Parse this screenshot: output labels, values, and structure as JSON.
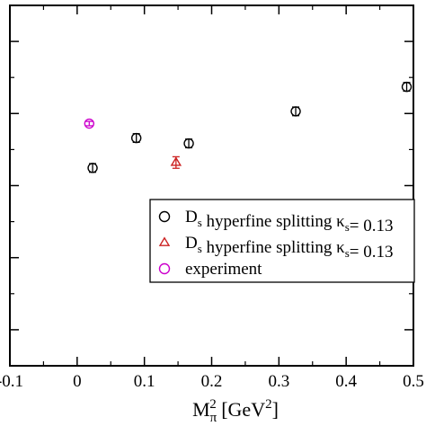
{
  "chart_data": {
    "type": "scatter",
    "xlim": [
      -0.1,
      0.5
    ],
    "x_ticks": [
      -0.1,
      0,
      0.1,
      0.2,
      0.3,
      0.4,
      0.5
    ],
    "x_tick_labels": [
      "-0.1",
      "0",
      "0.1",
      "0.2",
      "0.3",
      "0.4",
      "0.5"
    ],
    "ylim": [
      0,
      1
    ],
    "y_ticks": [
      0.1,
      0.3,
      0.5,
      0.7,
      0.9
    ],
    "y_tick_labels": [
      "",
      "",
      "",
      "",
      ""
    ],
    "xlabel": {
      "main": "M",
      "sub": "π",
      "sup": "2",
      "unit_open": " [GeV",
      "unit_sup": "2",
      "unit_close": "]"
    },
    "ylabel": "",
    "grid": false,
    "legend_position": "lower-right",
    "series": [
      {
        "name": "D_s hyperfine splitting κ_s = 0.13",
        "legend_parts": {
          "a": "D",
          "sub": "s",
          "b": " hyperfine splitting κ",
          "sub2": "s",
          "c": "= 0.13"
        },
        "marker": "circle",
        "color": "#000000",
        "points": [
          {
            "x": 0.023,
            "y": 0.549,
            "err": 0.012
          },
          {
            "x": 0.088,
            "y": 0.632,
            "err": 0.012
          },
          {
            "x": 0.166,
            "y": 0.617,
            "err": 0.012
          },
          {
            "x": 0.325,
            "y": 0.706,
            "err": 0.012
          },
          {
            "x": 0.49,
            "y": 0.774,
            "err": 0.012
          }
        ]
      },
      {
        "name": "D_s hyperfine splitting κ_s = 0.13",
        "legend_parts": {
          "a": "D",
          "sub": "s",
          "b": " hyperfine splitting κ",
          "sub2": "s",
          "c": "= 0.13"
        },
        "marker": "triangle",
        "color": "#cc2222",
        "points": [
          {
            "x": 0.147,
            "y": 0.564,
            "err": 0.016
          }
        ]
      },
      {
        "name": "experiment",
        "legend_parts": {
          "a": "experiment",
          "sub": "",
          "b": "",
          "sub2": "",
          "c": ""
        },
        "marker": "circle",
        "color": "#cc00cc",
        "points": [
          {
            "x": 0.018,
            "y": 0.672,
            "err": 0.006
          }
        ]
      }
    ]
  }
}
